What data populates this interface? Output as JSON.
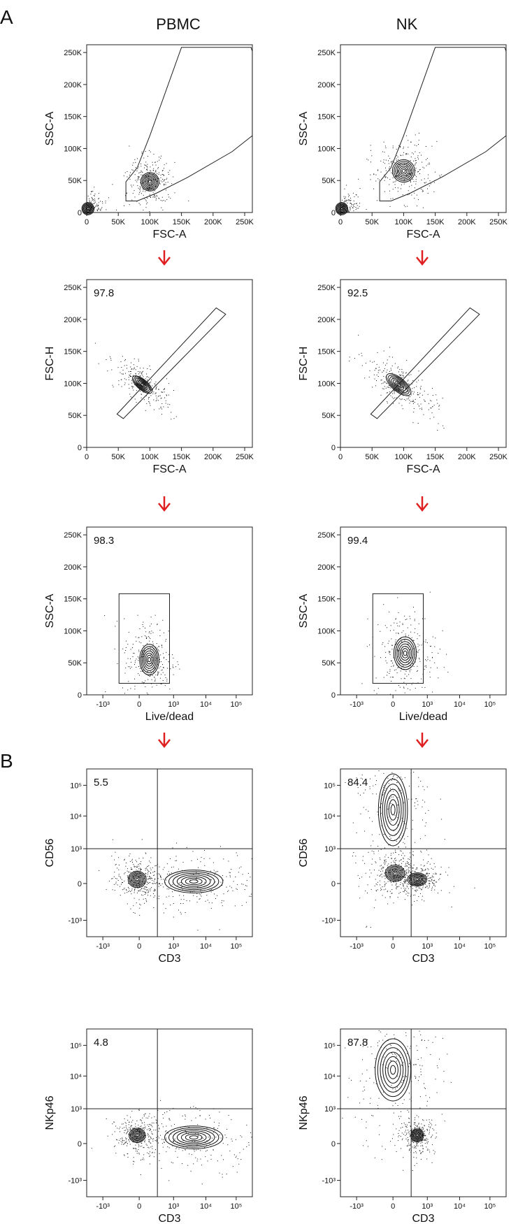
{
  "panel_labels": [
    "A",
    "B"
  ],
  "column_titles": [
    "PBMC",
    "NK"
  ],
  "chart_data": [
    {
      "id": "p1",
      "type": "scatter",
      "column": "PBMC",
      "xlabel": "FSC-A",
      "ylabel": "SSC-A",
      "gate_value": "",
      "x_ticks": [
        "0",
        "50K",
        "100K",
        "150K",
        "200K",
        "250K"
      ],
      "y_ticks": [
        "0",
        "50K",
        "100K",
        "150K",
        "200K",
        "250K"
      ],
      "xlim": [
        0,
        262144
      ],
      "ylim": [
        0,
        262144
      ],
      "gate": {
        "shape": "polygon",
        "points": [
          [
            62000,
            18000
          ],
          [
            62000,
            48000
          ],
          [
            80000,
            70000
          ],
          [
            100000,
            120000
          ],
          [
            150000,
            258000
          ],
          [
            260000,
            258000
          ],
          [
            262000,
            252000
          ],
          [
            262000,
            120000
          ],
          [
            230000,
            95000
          ],
          [
            160000,
            55000
          ],
          [
            110000,
            30000
          ],
          [
            80000,
            18000
          ]
        ]
      },
      "clusters": [
        {
          "cx": 2000,
          "cy": 6000,
          "sx": 6000,
          "sy": 6000,
          "rot": 0.6
        },
        {
          "cx": 100000,
          "cy": 48000,
          "sx": 9000,
          "sy": 9000,
          "rot": 0.4
        }
      ]
    },
    {
      "id": "p2",
      "type": "scatter",
      "column": "NK",
      "xlabel": "FSC-A",
      "ylabel": "SSC-A",
      "gate_value": "",
      "x_ticks": [
        "0",
        "50K",
        "100K",
        "150K",
        "200K",
        "250K"
      ],
      "y_ticks": [
        "0",
        "50K",
        "100K",
        "150K",
        "200K",
        "250K"
      ],
      "xlim": [
        0,
        262144
      ],
      "ylim": [
        0,
        262144
      ],
      "gate": {
        "shape": "polygon",
        "points": [
          [
            62000,
            18000
          ],
          [
            62000,
            48000
          ],
          [
            80000,
            70000
          ],
          [
            100000,
            120000
          ],
          [
            150000,
            258000
          ],
          [
            260000,
            258000
          ],
          [
            262000,
            252000
          ],
          [
            262000,
            120000
          ],
          [
            230000,
            95000
          ],
          [
            160000,
            55000
          ],
          [
            110000,
            30000
          ],
          [
            80000,
            18000
          ]
        ]
      },
      "clusters": [
        {
          "cx": 2000,
          "cy": 6000,
          "sx": 6000,
          "sy": 6000,
          "rot": 0.6
        },
        {
          "cx": 100000,
          "cy": 65000,
          "sx": 11000,
          "sy": 11000,
          "rot": 0.3
        }
      ]
    },
    {
      "id": "p3",
      "type": "scatter",
      "column": "PBMC",
      "xlabel": "FSC-A",
      "ylabel": "FSC-H",
      "gate_value": "97.8",
      "x_ticks": [
        "0",
        "50K",
        "100K",
        "150K",
        "200K",
        "250K"
      ],
      "y_ticks": [
        "0",
        "50K",
        "100K",
        "150K",
        "200K",
        "250K"
      ],
      "xlim": [
        0,
        262144
      ],
      "ylim": [
        0,
        262144
      ],
      "gate": {
        "shape": "polygon",
        "points": [
          [
            48000,
            52000
          ],
          [
            205000,
            218000
          ],
          [
            220000,
            208000
          ],
          [
            58000,
            45000
          ]
        ]
      },
      "clusters": [
        {
          "cx": 88000,
          "cy": 98000,
          "sx": 12000,
          "sy": 5000,
          "rot": -0.7
        }
      ]
    },
    {
      "id": "p4",
      "type": "scatter",
      "column": "NK",
      "xlabel": "FSC-A",
      "ylabel": "FSC-H",
      "gate_value": "92.5",
      "x_ticks": [
        "0",
        "50K",
        "100K",
        "150K",
        "200K",
        "250K"
      ],
      "y_ticks": [
        "0",
        "50K",
        "100K",
        "150K",
        "200K",
        "250K"
      ],
      "xlim": [
        0,
        262144
      ],
      "ylim": [
        0,
        262144
      ],
      "gate": {
        "shape": "polygon",
        "points": [
          [
            48000,
            52000
          ],
          [
            205000,
            218000
          ],
          [
            220000,
            208000
          ],
          [
            58000,
            45000
          ]
        ]
      },
      "clusters": [
        {
          "cx": 92000,
          "cy": 98000,
          "sx": 15000,
          "sy": 6500,
          "rot": -0.7
        }
      ]
    },
    {
      "id": "p5",
      "type": "scatter",
      "column": "PBMC",
      "xlabel": "Live/dead",
      "ylabel": "SSC-A",
      "gate_value": "98.3",
      "x_ticks": [
        "-10³",
        "0",
        "10³",
        "10⁴",
        "10⁵"
      ],
      "y_ticks": [
        "0",
        "50K",
        "100K",
        "150K",
        "200K",
        "250K"
      ],
      "xlim": [
        -2.6,
        5.6
      ],
      "ylim": [
        0,
        262144
      ],
      "gate": {
        "shape": "rect",
        "x1": -1.0,
        "y1": 18000,
        "x2": 1.5,
        "y2": 158000
      },
      "clusters": [
        {
          "cx": 0.5,
          "cy": 55000,
          "sx": 0.3,
          "sy": 15000,
          "rot": 0
        }
      ]
    },
    {
      "id": "p6",
      "type": "scatter",
      "column": "NK",
      "xlabel": "Live/dead",
      "ylabel": "SSC-A",
      "gate_value": "99.4",
      "x_ticks": [
        "-10³",
        "0",
        "10³",
        "10⁴",
        "10⁵"
      ],
      "y_ticks": [
        "0",
        "50K",
        "100K",
        "150K",
        "200K",
        "250K"
      ],
      "xlim": [
        -2.6,
        5.6
      ],
      "ylim": [
        0,
        262144
      ],
      "gate": {
        "shape": "rect",
        "x1": -1.0,
        "y1": 18000,
        "x2": 1.5,
        "y2": 158000
      },
      "clusters": [
        {
          "cx": 0.6,
          "cy": 65000,
          "sx": 0.35,
          "sy": 16000,
          "rot": 0
        }
      ]
    },
    {
      "id": "p7",
      "type": "scatter",
      "column": "PBMC",
      "xlabel": "CD3",
      "ylabel": "CD56",
      "gate_value": "5.5",
      "x_ticks": [
        "-10³",
        "0",
        "10³",
        "10⁴",
        "10⁵"
      ],
      "y_ticks": [
        "-10³",
        "0",
        "10³",
        "10⁴",
        "10⁵"
      ],
      "xlim": [
        -2.6,
        5.6
      ],
      "ylim": [
        -2.6,
        5.6
      ],
      "gate": {
        "shape": "quadrant",
        "qx": 0.9,
        "qy": 1.7
      },
      "clusters": [
        {
          "cx": -0.1,
          "cy": 0.2,
          "sx": 0.28,
          "sy": 0.25,
          "rot": 0
        },
        {
          "cx": 2.7,
          "cy": 0.1,
          "sx": 0.9,
          "sy": 0.35,
          "rot": 0
        }
      ]
    },
    {
      "id": "p8",
      "type": "scatter",
      "column": "NK",
      "xlabel": "CD3",
      "ylabel": "CD56",
      "gate_value": "84.4",
      "x_ticks": [
        "-10³",
        "0",
        "10³",
        "10⁴",
        "10⁵"
      ],
      "y_ticks": [
        "-10³",
        "0",
        "10³",
        "10⁴",
        "10⁵"
      ],
      "xlim": [
        -2.6,
        5.6
      ],
      "ylim": [
        -2.6,
        5.6
      ],
      "gate": {
        "shape": "quadrant",
        "qx": 0.9,
        "qy": 1.7
      },
      "clusters": [
        {
          "cx": 0.0,
          "cy": 3.6,
          "sx": 0.45,
          "sy": 1.1,
          "rot": 0
        },
        {
          "cx": 0.1,
          "cy": 0.5,
          "sx": 0.3,
          "sy": 0.25,
          "rot": 0
        },
        {
          "cx": 1.2,
          "cy": 0.2,
          "sx": 0.3,
          "sy": 0.2,
          "rot": 0
        }
      ]
    },
    {
      "id": "p9",
      "type": "scatter",
      "column": "PBMC",
      "xlabel": "CD3",
      "ylabel": "NKp46",
      "gate_value": "4.8",
      "x_ticks": [
        "-10³",
        "0",
        "10³",
        "10⁴",
        "10⁵"
      ],
      "y_ticks": [
        "-10³",
        "0",
        "10³",
        "10⁴",
        "10⁵"
      ],
      "xlim": [
        -2.6,
        5.6
      ],
      "ylim": [
        -2.6,
        5.6
      ],
      "gate": {
        "shape": "quadrant",
        "qx": 0.9,
        "qy": 1.7
      },
      "clusters": [
        {
          "cx": -0.1,
          "cy": 0.4,
          "sx": 0.25,
          "sy": 0.22,
          "rot": 0
        },
        {
          "cx": 2.7,
          "cy": 0.3,
          "sx": 0.9,
          "sy": 0.35,
          "rot": 0
        }
      ]
    },
    {
      "id": "p10",
      "type": "scatter",
      "column": "NK",
      "xlabel": "CD3",
      "ylabel": "NKp46",
      "gate_value": "87.8",
      "x_ticks": [
        "-10³",
        "0",
        "10³",
        "10⁴",
        "10⁵"
      ],
      "y_ticks": [
        "-10³",
        "0",
        "10³",
        "10⁴",
        "10⁵"
      ],
      "xlim": [
        -2.6,
        5.6
      ],
      "ylim": [
        -2.6,
        5.6
      ],
      "gate": {
        "shape": "quadrant",
        "qx": 0.9,
        "qy": 1.7
      },
      "clusters": [
        {
          "cx": 0.0,
          "cy": 3.6,
          "sx": 0.55,
          "sy": 0.95,
          "rot": 0
        },
        {
          "cx": 1.2,
          "cy": 0.4,
          "sx": 0.2,
          "sy": 0.2,
          "rot": 0
        }
      ]
    }
  ]
}
